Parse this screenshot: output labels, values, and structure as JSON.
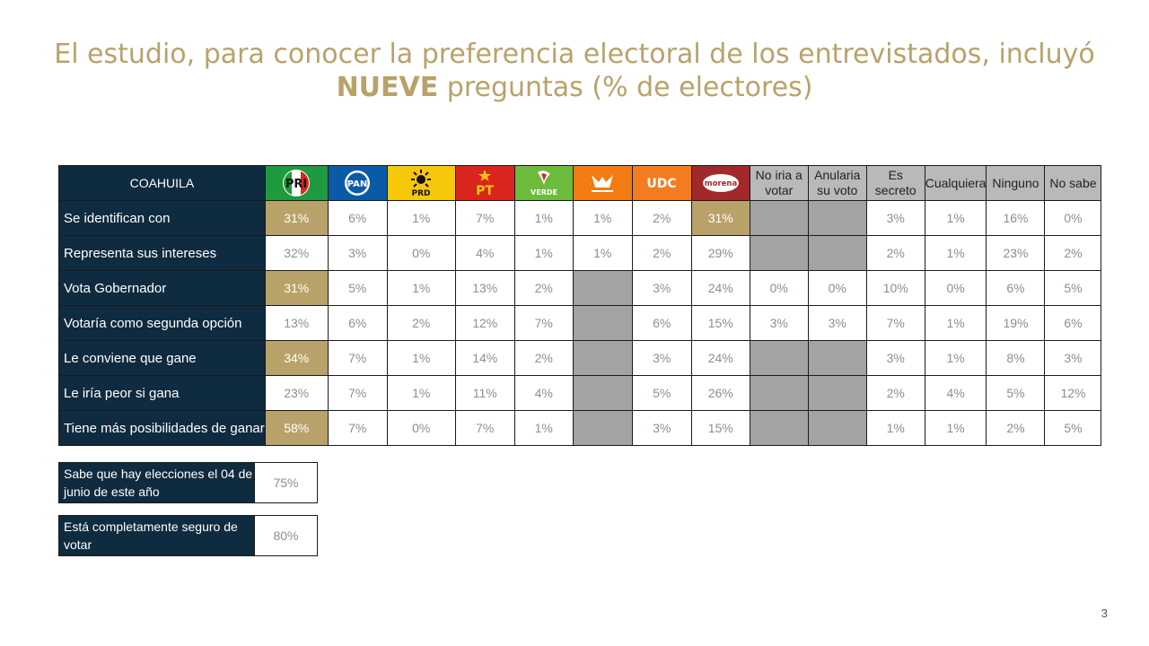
{
  "title": {
    "line1": "El estudio, para conocer la preferencia electoral de los entrevistados, incluyó",
    "line2_bold": "NUEVE",
    "line2_rest": " preguntas (% de electores)"
  },
  "table": {
    "region_label": "COAHUILA",
    "parties": [
      {
        "name": "PRI",
        "label": "PRI",
        "bg": "#1f9a3e"
      },
      {
        "name": "PAN",
        "label": "PAN",
        "bg": "#0a5aa8"
      },
      {
        "name": "PRD",
        "label": "PRD",
        "bg": "#f7c70a"
      },
      {
        "name": "PT",
        "label": "PT",
        "bg": "#d9251d"
      },
      {
        "name": "VERDE",
        "label": "VERDE",
        "bg": "#6dbb3c"
      },
      {
        "name": "MOVIMIENTO CIUDADANO",
        "label": "MOVIMIENTO CIUDADANO",
        "bg": "#f27b12"
      },
      {
        "name": "UDC",
        "label": "UDC",
        "bg": "#f47c20"
      },
      {
        "name": "morena",
        "label": "morena",
        "bg": "#a1282b"
      }
    ],
    "text_headers": [
      "No iria a votar",
      "Anularia su voto",
      "Es secreto",
      "Cualquiera",
      "Ninguno",
      "No sabe"
    ],
    "rows": [
      {
        "label": "Se identifican con",
        "values": [
          "31%",
          "6%",
          "1%",
          "7%",
          "1%",
          "1%",
          "2%",
          "31%",
          "",
          "",
          "3%",
          "1%",
          "16%",
          "0%"
        ]
      },
      {
        "label": "Representa sus intereses",
        "values": [
          "32%",
          "3%",
          "0%",
          "4%",
          "1%",
          "1%",
          "2%",
          "29%",
          "",
          "",
          "2%",
          "1%",
          "23%",
          "2%"
        ]
      },
      {
        "label": "Vota Gobernador",
        "values": [
          "31%",
          "5%",
          "1%",
          "13%",
          "2%",
          "",
          "3%",
          "24%",
          "0%",
          "0%",
          "10%",
          "0%",
          "6%",
          "5%"
        ]
      },
      {
        "label": "Votaría como segunda opción",
        "values": [
          "13%",
          "6%",
          "2%",
          "12%",
          "7%",
          "",
          "6%",
          "15%",
          "3%",
          "3%",
          "7%",
          "1%",
          "19%",
          "6%"
        ]
      },
      {
        "label": "Le conviene que gane",
        "values": [
          "34%",
          "7%",
          "1%",
          "14%",
          "2%",
          "",
          "3%",
          "24%",
          "",
          "",
          "3%",
          "1%",
          "8%",
          "3%"
        ]
      },
      {
        "label": "Le iría peor si gana",
        "values": [
          "23%",
          "7%",
          "1%",
          "11%",
          "4%",
          "",
          "5%",
          "26%",
          "",
          "",
          "2%",
          "4%",
          "5%",
          "12%"
        ]
      },
      {
        "label": "Tiene más posibilidades de ganar",
        "values": [
          "58%",
          "7%",
          "0%",
          "7%",
          "1%",
          "",
          "3%",
          "15%",
          "",
          "",
          "1%",
          "1%",
          "2%",
          "5%"
        ]
      }
    ]
  },
  "extra": [
    {
      "label": "Sabe que hay elecciones el 04 de junio de este año",
      "value": "75%"
    },
    {
      "label": "Está completamente seguro de votar",
      "value": "80%"
    }
  ],
  "page_number": "3",
  "colors": {
    "title": "#b9a26a",
    "navy": "#0f2b3f",
    "highlight": "#b9a26a",
    "gray_cell": "#a3a3a3"
  }
}
